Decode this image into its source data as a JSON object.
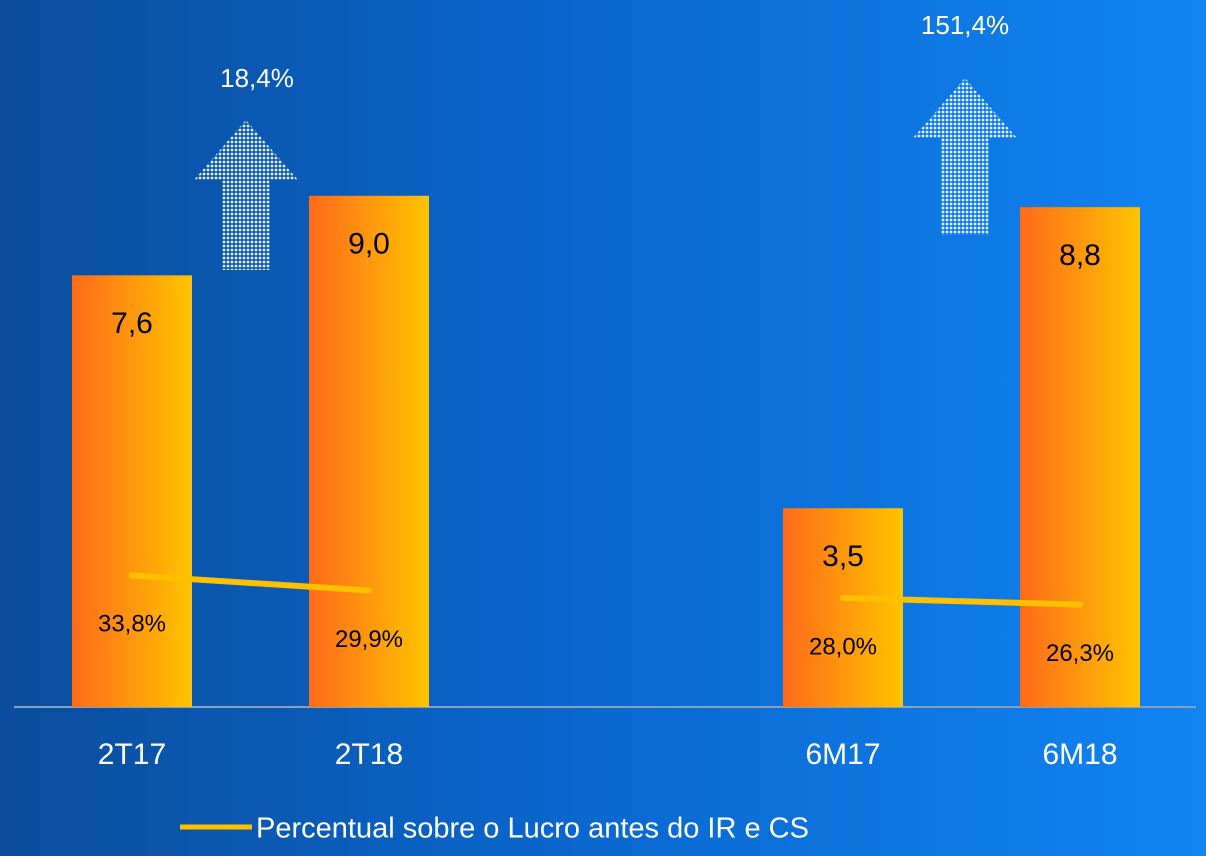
{
  "chart_data": {
    "type": "bar",
    "categories": [
      "2T17",
      "2T18",
      null,
      "6M17",
      "6M18"
    ],
    "series": [
      {
        "color": [
          "#ff6a1a",
          "#ffc400"
        ],
        "values": [
          7.6,
          9.0,
          null,
          3.5,
          8.8
        ],
        "value_labels": [
          "7,6",
          "9,0",
          null,
          "3,5",
          "8,8"
        ]
      },
      {
        "name": "Percentual sobre o Lucro antes do IR e CS",
        "type": "line",
        "axis": "y2",
        "color": "#ffc000",
        "values": [
          33.8,
          29.9,
          null,
          28.0,
          26.3
        ],
        "value_labels": [
          "33,8%",
          "29,9%",
          null,
          "28,0%",
          "26,3%"
        ]
      }
    ],
    "annotations": [
      {
        "text": "18,4%"
      },
      {
        "text": "151,4%"
      }
    ],
    "ylim": [
      0,
      12
    ],
    "y2lim": [
      0,
      175
    ],
    "legend": "bottom"
  }
}
